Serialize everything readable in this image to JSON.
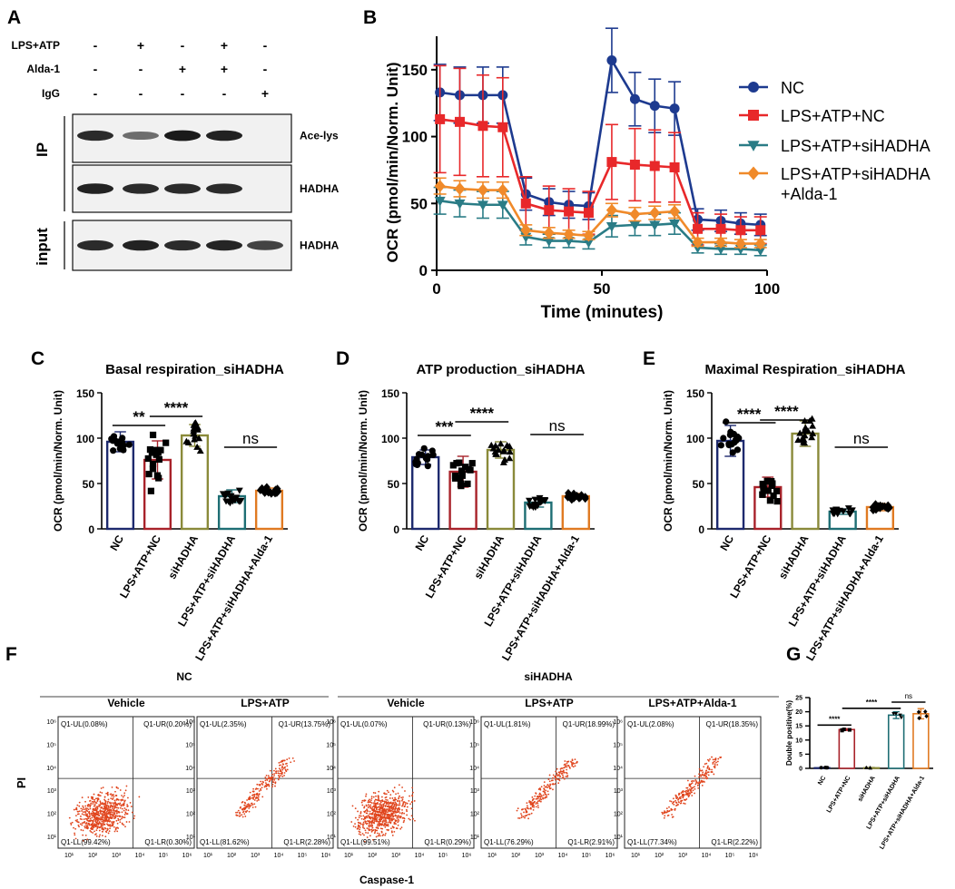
{
  "colors": {
    "nc": "#1d3a8f",
    "lps_nc": "#e8282a",
    "si": "#2a7c86",
    "alda": "#f08a2a",
    "bar_nc": "#1e2a6e",
    "bar_lps": "#a8222a",
    "bar_si": "#8a8a3a",
    "bar_lsi": "#1e6e74",
    "bar_alda": "#e07a22",
    "dot": "#e0441c"
  },
  "panel_labels": [
    "A",
    "B",
    "C",
    "D",
    "E",
    "F",
    "G"
  ],
  "blot": {
    "row_labels": [
      "LPS+ATP",
      "Alda-1",
      "IgG"
    ],
    "signs": [
      [
        "-",
        "+",
        "-",
        "+",
        "-"
      ],
      [
        "-",
        "-",
        "+",
        "+",
        "-"
      ],
      [
        "-",
        "-",
        "-",
        "-",
        "+"
      ]
    ],
    "band_labels": [
      "Ace-lys",
      "HADHA",
      "HADHA"
    ],
    "section_labels": [
      "IP",
      "input"
    ],
    "band_intensity": [
      [
        0.85,
        0.45,
        0.95,
        0.9,
        0
      ],
      [
        0.9,
        0.85,
        0.85,
        0.85,
        0
      ],
      [
        0.85,
        0.9,
        0.85,
        0.88,
        0.7
      ]
    ]
  },
  "chart_data": [
    {
      "id": "B",
      "type": "line",
      "title": "",
      "xlabel": "Time (minutes)",
      "ylabel": "OCR (pmol/min/Norm. Unit)",
      "xlim": [
        0,
        100
      ],
      "ylim": [
        0,
        175
      ],
      "xticks": [
        0,
        50,
        100
      ],
      "yticks": [
        0,
        50,
        100,
        150
      ],
      "x": [
        1,
        7,
        14,
        20,
        27,
        34,
        40,
        46,
        53,
        60,
        66,
        72,
        79,
        86,
        92,
        98
      ],
      "series": [
        {
          "name": "NC",
          "color_key": "nc",
          "marker": "circle",
          "values": [
            133,
            131,
            131,
            131,
            57,
            51,
            49,
            48,
            157,
            128,
            123,
            121,
            38,
            37,
            35,
            34
          ],
          "err": [
            21,
            21,
            21,
            21,
            12,
            10,
            10,
            10,
            24,
            20,
            20,
            20,
            8,
            8,
            8,
            8
          ]
        },
        {
          "name": "LPS+ATP+NC",
          "color_key": "lps_nc",
          "marker": "square",
          "values": [
            113,
            111,
            108,
            107,
            50,
            45,
            44,
            43,
            81,
            79,
            78,
            77,
            31,
            31,
            30,
            30
          ],
          "err": [
            40,
            40,
            38,
            37,
            20,
            18,
            17,
            16,
            28,
            27,
            27,
            26,
            12,
            11,
            10,
            10
          ]
        },
        {
          "name": "LPS+ATP+siHADHA",
          "color_key": "si",
          "marker": "triangle-down",
          "values": [
            52,
            50,
            49,
            49,
            25,
            22,
            22,
            21,
            33,
            34,
            34,
            35,
            17,
            16,
            16,
            15
          ],
          "err": [
            10,
            10,
            10,
            10,
            6,
            5,
            5,
            5,
            8,
            8,
            8,
            8,
            4,
            4,
            4,
            4
          ]
        },
        {
          "name": "LPS+ATP+siHADHA\n+Alda-1",
          "color_key": "alda",
          "marker": "diamond",
          "values": [
            63,
            61,
            60,
            60,
            30,
            28,
            27,
            26,
            45,
            42,
            43,
            44,
            21,
            21,
            20,
            20
          ],
          "err": [
            6,
            6,
            6,
            6,
            4,
            4,
            3,
            3,
            5,
            5,
            5,
            5,
            3,
            3,
            3,
            3
          ]
        }
      ]
    },
    {
      "id": "C",
      "type": "bar",
      "title": "Basal respiration_siHADHA",
      "ylabel": "OCR (pmol/min/Norm. Unit)",
      "ylim": [
        0,
        150
      ],
      "yticks": [
        0,
        50,
        100,
        150
      ],
      "categories": [
        "NC",
        "LPS+ATP+NC",
        "siHADHA",
        "LPS+ATP+siHADHA",
        "LPS+ATP+siHADHA+Alda-1"
      ],
      "values": [
        96,
        76,
        103,
        36,
        42
      ],
      "err": [
        11,
        21,
        12,
        7,
        3
      ],
      "markers": [
        "circle",
        "square",
        "triangle-up",
        "triangle-down",
        "diamond"
      ],
      "annotations": [
        {
          "text": "**",
          "from": 0,
          "to": 1,
          "y": 114
        },
        {
          "text": "****",
          "from": 1,
          "to": 2,
          "y": 124
        },
        {
          "text": "ns",
          "from": 3,
          "to": 4,
          "y": 90
        }
      ]
    },
    {
      "id": "D",
      "type": "bar",
      "title": "ATP production_siHADHA",
      "ylabel": "OCR (pmol/min/Norm. Unit)",
      "ylim": [
        0,
        150
      ],
      "yticks": [
        0,
        50,
        100,
        150
      ],
      "categories": [
        "NC",
        "LPS+ATP+NC",
        "siHADHA",
        "LPS+ATP+siHADHA",
        "LPS+ATP+siHADHA+Alda-1"
      ],
      "values": [
        79,
        63,
        87,
        29,
        36
      ],
      "err": [
        8,
        17,
        9,
        5,
        3
      ],
      "markers": [
        "circle",
        "square",
        "triangle-up",
        "triangle-down",
        "diamond"
      ],
      "annotations": [
        {
          "text": "***",
          "from": 0,
          "to": 1,
          "y": 103
        },
        {
          "text": "****",
          "from": 1,
          "to": 2,
          "y": 118
        },
        {
          "text": "ns",
          "from": 3,
          "to": 4,
          "y": 104
        }
      ]
    },
    {
      "id": "E",
      "type": "bar",
      "title": "Maximal Respiration_siHADHA",
      "ylabel": "OCR (pmol/min/Norm. Unit)",
      "ylim": [
        0,
        150
      ],
      "yticks": [
        0,
        50,
        100,
        150
      ],
      "categories": [
        "NC",
        "LPS+ATP+NC",
        "siHADHA",
        "LPS+ATP+siHADHA",
        "LPS+ATP+siHADHA+Alda-1"
      ],
      "values": [
        97,
        46,
        105,
        19,
        24
      ],
      "err": [
        17,
        11,
        14,
        3,
        4
      ],
      "markers": [
        "circle",
        "square",
        "triangle-up",
        "triangle-down",
        "diamond"
      ],
      "annotations": [
        {
          "text": "****",
          "from": 0,
          "to": 1,
          "y": 117
        },
        {
          "text": "****",
          "from": 1,
          "to": 2,
          "y": 120
        },
        {
          "text": "ns",
          "from": 3,
          "to": 4,
          "y": 90
        }
      ]
    },
    {
      "id": "F",
      "type": "scatter",
      "title": "",
      "xlabel": "Caspase-1",
      "ylabel": "PI",
      "group_labels": [
        "NC",
        "siHADHA"
      ],
      "x_ticks": [
        "10¹",
        "10²",
        "10³",
        "10⁴",
        "10⁵",
        "10⁶"
      ],
      "y_ticks": [
        "10¹",
        "10²",
        "10³",
        "10⁴",
        "10⁵",
        "10⁶"
      ],
      "plots": [
        {
          "title": "Vehicle",
          "UL": "Q1-UL(0.08%)",
          "UR": "Q1-UR(0.20%)",
          "LL": "Q1-LL(99.42%)",
          "LR": "Q1-LR(0.30%)",
          "density": "high"
        },
        {
          "title": "LPS+ATP",
          "UL": "Q1-UL(2.35%)",
          "UR": "Q1-UR(13.75%)",
          "LL": "Q1-LL(81.62%)",
          "LR": "Q1-LR(2.28%)",
          "density": "low"
        },
        {
          "title": "Vehicle",
          "UL": "Q1-UL(0.07%)",
          "UR": "Q1-UR(0.13%)",
          "LL": "Q1-LL(99.51%)",
          "LR": "Q1-LR(0.29%)",
          "density": "high"
        },
        {
          "title": "LPS+ATP",
          "UL": "Q1-UL(1.81%)",
          "UR": "Q1-UR(18.99%)",
          "LL": "Q1-LL(76.29%)",
          "LR": "Q1-LR(2.91%)",
          "density": "low"
        },
        {
          "title": "LPS+ATP+Alda-1",
          "UL": "Q1-UL(2.08%)",
          "UR": "Q1-UR(18.35%)",
          "LL": "Q1-LL(77.34%)",
          "LR": "Q1-LR(2.22%)",
          "density": "low"
        }
      ]
    },
    {
      "id": "G",
      "type": "bar",
      "title": "",
      "ylabel": "Double positive(%)",
      "ylim": [
        0,
        25
      ],
      "yticks": [
        0,
        5,
        10,
        15,
        20,
        25
      ],
      "categories": [
        "NC",
        "LPS+ATP+NC",
        "siHADHA",
        "LPS+ATP+siHADHA",
        "LPS+ATP+siHADHA+Alda-1"
      ],
      "values": [
        0.2,
        13.7,
        0.2,
        18.8,
        19.3
      ],
      "err": [
        0.1,
        0.3,
        0.1,
        1.2,
        1.8
      ],
      "markers": [
        "circle",
        "square",
        "triangle-up",
        "triangle-down",
        "diamond"
      ],
      "annotations": [
        {
          "text": "****",
          "from": 0,
          "to": 1,
          "y": 15.3
        },
        {
          "text": "****",
          "from": 1,
          "to": 3,
          "y": 21.2
        },
        {
          "text": "ns",
          "from": 3,
          "to": 4,
          "y": 23.4
        }
      ]
    }
  ]
}
